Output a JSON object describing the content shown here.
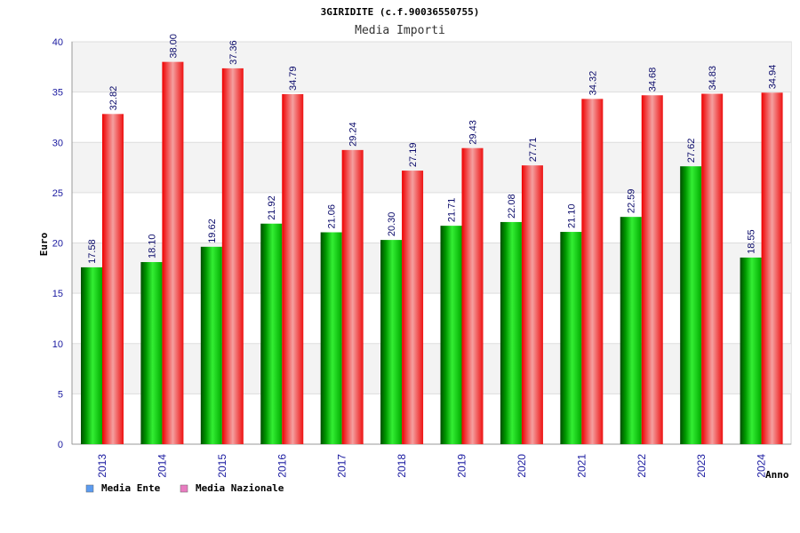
{
  "chart_data": {
    "type": "bar",
    "title": "3GIRIDITE (c.f.90036550755)",
    "subtitle": "Media Importi",
    "xlabel": "Anno",
    "ylabel": "Euro",
    "ylim": [
      0,
      40
    ],
    "yticks": [
      0,
      5,
      10,
      15,
      20,
      25,
      30,
      35,
      40
    ],
    "grid": true,
    "legend_position": "bottom-left",
    "categories": [
      "2013",
      "2014",
      "2015",
      "2016",
      "2017",
      "2018",
      "2019",
      "2020",
      "2021",
      "2022",
      "2023",
      "2024"
    ],
    "series": [
      {
        "name": "Media Ente",
        "color": "#00b000",
        "legend_color": "#5b9bf0",
        "values": [
          17.58,
          18.1,
          19.62,
          21.92,
          21.06,
          20.3,
          21.71,
          22.08,
          21.1,
          22.59,
          27.62,
          18.55
        ],
        "labels": [
          "17.58",
          "18.10",
          "19.62",
          "21.92",
          "21.06",
          "20.30",
          "21.71",
          "22.08",
          "21.10",
          "22.59",
          "27.62",
          "18.55"
        ]
      },
      {
        "name": "Media Nazionale",
        "color": "#e8141e",
        "legend_color": "#e87cc0",
        "values": [
          32.82,
          38.0,
          37.36,
          34.79,
          29.24,
          27.19,
          29.43,
          27.71,
          34.32,
          34.68,
          34.83,
          34.94
        ],
        "labels": [
          "32.82",
          "38.00",
          "37.36",
          "34.79",
          "29.24",
          "27.19",
          "29.43",
          "27.71",
          "34.32",
          "34.68",
          "34.83",
          "34.94"
        ]
      }
    ]
  }
}
